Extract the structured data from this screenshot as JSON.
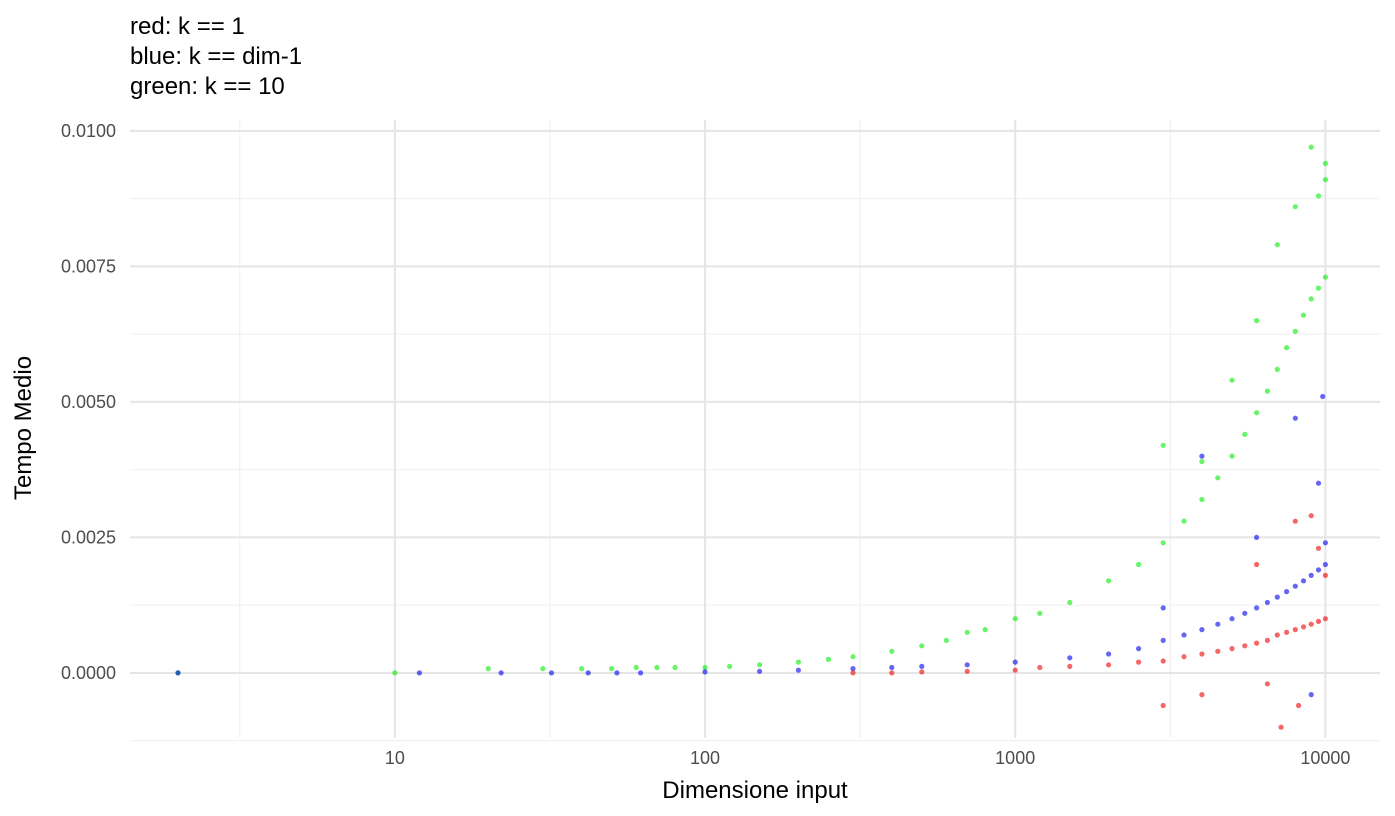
{
  "chart_data": {
    "type": "scatter",
    "title_lines": [
      "red: k == 1",
      "blue: k == dim-1",
      "green: k == 10"
    ],
    "xlabel": "Dimensione input",
    "ylabel": "Tempo Medio",
    "x_scale": "log10",
    "xlim": [
      1.4,
      15000
    ],
    "ylim": [
      -0.0012,
      0.0102
    ],
    "x_ticks": [
      10,
      100,
      1000,
      10000
    ],
    "x_tick_labels": [
      "10",
      "100",
      "1000",
      "10000"
    ],
    "y_ticks": [
      0.0,
      0.0025,
      0.005,
      0.0075,
      0.01
    ],
    "y_tick_labels": [
      "0.0000",
      "0.0025",
      "0.0050",
      "0.0075",
      "0.0100"
    ],
    "grid": true,
    "legend": "none",
    "series": [
      {
        "color": "#00ee00",
        "points": [
          [
            2,
            0.0
          ],
          [
            10,
            0.0
          ],
          [
            20,
            8e-05
          ],
          [
            30,
            8e-05
          ],
          [
            40,
            8e-05
          ],
          [
            50,
            8e-05
          ],
          [
            60,
            0.0001
          ],
          [
            70,
            0.0001
          ],
          [
            80,
            0.0001
          ],
          [
            100,
            0.0001
          ],
          [
            120,
            0.00012
          ],
          [
            150,
            0.00015
          ],
          [
            200,
            0.0002
          ],
          [
            250,
            0.00025
          ],
          [
            300,
            0.0003
          ],
          [
            400,
            0.0004
          ],
          [
            500,
            0.0005
          ],
          [
            600,
            0.0006
          ],
          [
            700,
            0.00075
          ],
          [
            800,
            0.0008
          ],
          [
            1000,
            0.001
          ],
          [
            1200,
            0.0011
          ],
          [
            1500,
            0.0013
          ],
          [
            2000,
            0.0017
          ],
          [
            2500,
            0.002
          ],
          [
            3000,
            0.0024
          ],
          [
            3500,
            0.0028
          ],
          [
            4000,
            0.0032
          ],
          [
            4500,
            0.0036
          ],
          [
            5000,
            0.004
          ],
          [
            5500,
            0.0044
          ],
          [
            6000,
            0.0048
          ],
          [
            6500,
            0.0052
          ],
          [
            7000,
            0.0056
          ],
          [
            7500,
            0.006
          ],
          [
            8000,
            0.0063
          ],
          [
            8500,
            0.0066
          ],
          [
            9000,
            0.0069
          ],
          [
            9500,
            0.0071
          ],
          [
            10000,
            0.0073
          ],
          [
            3000,
            0.0042
          ],
          [
            4000,
            0.0039
          ],
          [
            5000,
            0.0054
          ],
          [
            6000,
            0.0065
          ],
          [
            7000,
            0.0079
          ],
          [
            8000,
            0.0086
          ],
          [
            9000,
            0.0097
          ],
          [
            9500,
            0.0088
          ],
          [
            10000,
            0.0094
          ],
          [
            10000,
            0.0091
          ]
        ]
      },
      {
        "color": "#0000ee",
        "points": [
          [
            2,
            0.0
          ],
          [
            12,
            0.0
          ],
          [
            22,
            0.0
          ],
          [
            32,
            0.0
          ],
          [
            42,
            0.0
          ],
          [
            52,
            0.0
          ],
          [
            62,
            0.0
          ],
          [
            100,
            2e-05
          ],
          [
            150,
            3e-05
          ],
          [
            200,
            5e-05
          ],
          [
            300,
            8e-05
          ],
          [
            400,
            0.0001
          ],
          [
            500,
            0.00012
          ],
          [
            700,
            0.00015
          ],
          [
            1000,
            0.0002
          ],
          [
            1500,
            0.00028
          ],
          [
            2000,
            0.00035
          ],
          [
            2500,
            0.00045
          ],
          [
            3000,
            0.0006
          ],
          [
            3500,
            0.0007
          ],
          [
            4000,
            0.0008
          ],
          [
            4500,
            0.0009
          ],
          [
            5000,
            0.001
          ],
          [
            5500,
            0.0011
          ],
          [
            6000,
            0.0012
          ],
          [
            6500,
            0.0013
          ],
          [
            7000,
            0.0014
          ],
          [
            7500,
            0.0015
          ],
          [
            8000,
            0.0016
          ],
          [
            8500,
            0.0017
          ],
          [
            9000,
            0.0018
          ],
          [
            9500,
            0.0019
          ],
          [
            10000,
            0.002
          ],
          [
            10000,
            0.0024
          ],
          [
            9800,
            0.0051
          ],
          [
            8000,
            0.0047
          ],
          [
            9500,
            0.0035
          ],
          [
            4000,
            0.004
          ],
          [
            6000,
            0.0025
          ],
          [
            3000,
            0.0012
          ],
          [
            9000,
            -0.0004
          ]
        ]
      },
      {
        "color": "#ee0000",
        "points": [
          [
            300,
            0.0
          ],
          [
            400,
            0.0
          ],
          [
            500,
            2e-05
          ],
          [
            700,
            3e-05
          ],
          [
            1000,
            5e-05
          ],
          [
            1200,
            0.0001
          ],
          [
            1500,
            0.00012
          ],
          [
            2000,
            0.00015
          ],
          [
            2500,
            0.0002
          ],
          [
            3000,
            0.00022
          ],
          [
            3500,
            0.0003
          ],
          [
            4000,
            0.00035
          ],
          [
            4500,
            0.0004
          ],
          [
            5000,
            0.00045
          ],
          [
            5500,
            0.0005
          ],
          [
            6000,
            0.00055
          ],
          [
            6500,
            0.0006
          ],
          [
            7000,
            0.0007
          ],
          [
            7500,
            0.00075
          ],
          [
            8000,
            0.0008
          ],
          [
            8500,
            0.00085
          ],
          [
            9000,
            0.0009
          ],
          [
            9500,
            0.00095
          ],
          [
            10000,
            0.001
          ],
          [
            3000,
            -0.0006
          ],
          [
            4000,
            -0.0004
          ],
          [
            6500,
            -0.0002
          ],
          [
            7200,
            -0.001
          ],
          [
            8200,
            -0.0006
          ],
          [
            9000,
            0.0029
          ],
          [
            8000,
            0.0028
          ],
          [
            6000,
            0.002
          ],
          [
            9500,
            0.0023
          ],
          [
            10000,
            0.0018
          ]
        ]
      }
    ]
  }
}
